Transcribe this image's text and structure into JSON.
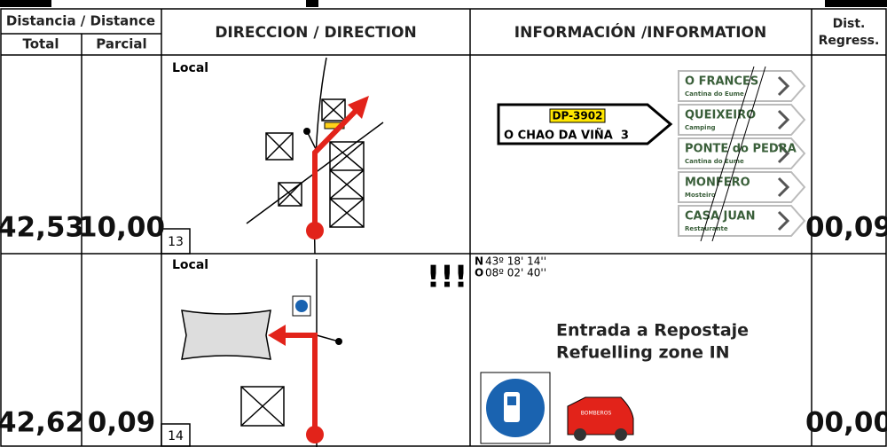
{
  "header": {
    "distance": "Distancia / Distance",
    "total": "Total",
    "partial": "Parcial",
    "direction": "DIRECCION / DIRECTION",
    "information": "INFORMACIÓN /INFORMATION",
    "dist": "Dist.",
    "regress": "Regress."
  },
  "rows": [
    {
      "total": "42,53",
      "partial": "10,00",
      "road": "Local",
      "number": "13",
      "regress": "00,09",
      "info": {
        "road_code": "DP-3902",
        "destination": "O CHAO DA VIÑA  3",
        "signs": [
          {
            "name": "O FRANCES",
            "sub": "Cantina do Eume"
          },
          {
            "name": "QUEIXEIRO",
            "sub": "Camping"
          },
          {
            "name": "PONTE do PEDRA",
            "sub": "Cantina do Eume"
          },
          {
            "name": "MONFERO",
            "sub": "Mosteiro"
          },
          {
            "name": "CASA JUAN",
            "sub": "Restaurante"
          }
        ]
      }
    },
    {
      "total": "42,62",
      "partial": "0,09",
      "road": "Local",
      "number": "14",
      "regress": "00,00",
      "caution": "!!!",
      "info": {
        "lat_label": "N",
        "lat": "43º 18' 14''",
        "lon_label": "O",
        "lon": "08º 02' 40''",
        "line1": "Entrada a Repostaje",
        "line2": "Refuelling zone IN",
        "truck": "BOMBEROS"
      }
    }
  ]
}
